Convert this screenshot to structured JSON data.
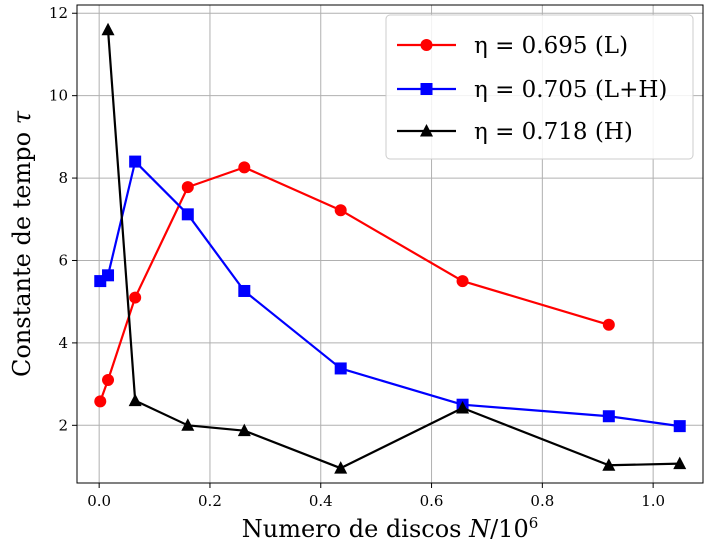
{
  "chart_data": {
    "type": "line",
    "title": "",
    "xlabel": "Numero de discos N/10^6",
    "ylabel": "Constante de tempo τ",
    "xlim": [
      -0.04,
      1.09
    ],
    "ylim": [
      0.6,
      12.2
    ],
    "x_ticks": [
      0.0,
      0.2,
      0.4,
      0.6,
      0.8,
      1.0
    ],
    "x_tick_labels": [
      "0.0",
      "0.2",
      "0.4",
      "0.6",
      "0.8",
      "1.0"
    ],
    "y_ticks": [
      2,
      4,
      6,
      8,
      10,
      12
    ],
    "y_tick_labels": [
      "2",
      "4",
      "6",
      "8",
      "10",
      "12"
    ],
    "grid": true,
    "legend_position": "top-right",
    "series": [
      {
        "name": "η = 0.695 (L)",
        "color": "#ff0000",
        "marker": "circle",
        "x": [
          0.002,
          0.016,
          0.065,
          0.16,
          0.262,
          0.436,
          0.656,
          0.92
        ],
        "y": [
          2.58,
          3.1,
          5.1,
          7.78,
          8.26,
          7.22,
          5.5,
          4.44
        ]
      },
      {
        "name": "η = 0.705 (L+H)",
        "color": "#0000ff",
        "marker": "square",
        "x": [
          0.002,
          0.016,
          0.065,
          0.16,
          0.262,
          0.436,
          0.656,
          0.92,
          1.048
        ],
        "y": [
          5.5,
          5.64,
          8.4,
          7.12,
          5.26,
          3.38,
          2.5,
          2.22,
          1.98
        ]
      },
      {
        "name": "η = 0.718 (H)",
        "color": "#000000",
        "marker": "triangle",
        "x": [
          0.016,
          0.065,
          0.16,
          0.262,
          0.436,
          0.656,
          0.92,
          1.048
        ],
        "y": [
          11.6,
          2.6,
          2.0,
          1.87,
          0.96,
          2.42,
          1.03,
          1.07
        ]
      }
    ]
  }
}
